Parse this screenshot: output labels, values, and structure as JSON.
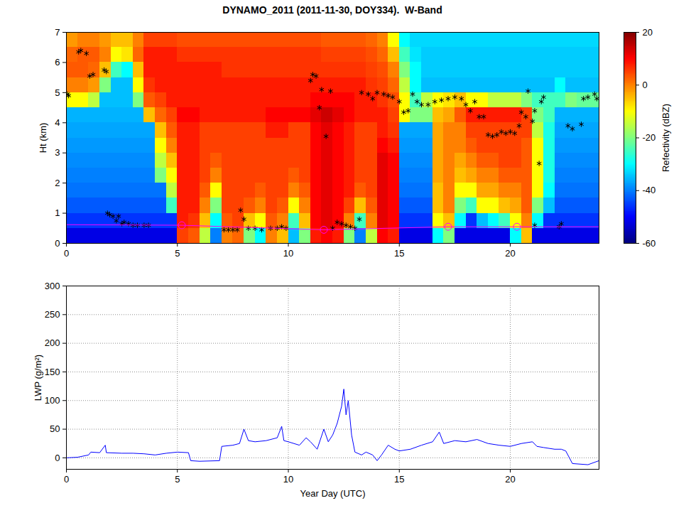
{
  "chart_data": [
    {
      "type": "heatmap",
      "title": "DYNAMO_2011 (2011-11-30, DOY334).  W-Band",
      "ylabel": "Ht (km)",
      "xlim": [
        0,
        24
      ],
      "xticks": [
        0,
        5,
        10,
        15,
        20
      ],
      "ylim": [
        0,
        7
      ],
      "yticks": [
        0,
        1,
        2,
        3,
        4,
        5,
        6,
        7
      ],
      "x_edges": [
        0,
        0.5,
        1,
        1.5,
        2,
        2.5,
        3,
        3.5,
        4,
        4.5,
        5,
        5.5,
        6,
        6.5,
        7,
        7.5,
        8,
        8.5,
        9,
        9.5,
        10,
        10.5,
        11,
        11.5,
        12,
        12.5,
        13,
        13.5,
        14,
        14.5,
        15,
        15.5,
        16,
        16.5,
        17,
        17.5,
        18,
        18.5,
        19,
        19.5,
        20,
        20.5,
        21,
        21.5,
        22,
        22.5,
        23,
        23.5,
        24
      ],
      "y_edges": [
        0,
        0.5,
        1,
        1.5,
        2,
        2.5,
        3,
        3.5,
        4,
        4.5,
        5,
        5.5,
        6,
        6.5,
        7
      ],
      "cells": [
        [
          -52,
          -46,
          -43,
          -41,
          -40,
          -39,
          -38,
          -37,
          -36,
          -10,
          0,
          3,
          2,
          -2
        ],
        [
          -52,
          -46,
          -43,
          -41,
          -40,
          -39,
          -38,
          -37,
          -36,
          -10,
          0,
          3,
          3,
          0
        ],
        [
          -52,
          -46,
          -43,
          -41,
          -40,
          -39,
          -38,
          -37,
          -36,
          -15,
          -2,
          2,
          3,
          0
        ],
        [
          -52,
          -46,
          -43,
          -41,
          -40,
          -39,
          -38,
          -37,
          -36,
          -35,
          -20,
          -5,
          0,
          -2
        ],
        [
          -52,
          -46,
          -43,
          -41,
          -40,
          -39,
          -38,
          -37,
          -36,
          -35,
          -35,
          -25,
          -10,
          -5
        ],
        [
          -52,
          -46,
          -43,
          -41,
          -40,
          -39,
          -38,
          -37,
          -36,
          -35,
          -35,
          -30,
          -8,
          -5
        ],
        [
          -52,
          -46,
          -43,
          -41,
          -40,
          -39,
          -38,
          -37,
          -36,
          -20,
          -10,
          -5,
          2,
          0
        ],
        [
          -52,
          -46,
          -43,
          -41,
          -40,
          -39,
          -38,
          -37,
          -5,
          3,
          6,
          8,
          8,
          5
        ],
        [
          -52,
          -46,
          -43,
          -41,
          -20,
          -15,
          -10,
          -5,
          2,
          5,
          8,
          8,
          8,
          5
        ],
        [
          -52,
          -46,
          -25,
          -15,
          -10,
          -5,
          0,
          3,
          5,
          8,
          8,
          8,
          8,
          5
        ],
        [
          5,
          8,
          8,
          8,
          8,
          8,
          8,
          8,
          10,
          8,
          8,
          8,
          6,
          4
        ],
        [
          3,
          6,
          8,
          8,
          8,
          8,
          8,
          8,
          10,
          8,
          8,
          8,
          6,
          4
        ],
        [
          -15,
          -5,
          0,
          3,
          5,
          5,
          5,
          5,
          8,
          8,
          8,
          8,
          6,
          4
        ],
        [
          -40,
          -30,
          -20,
          -10,
          0,
          3,
          5,
          5,
          8,
          8,
          8,
          8,
          6,
          4
        ],
        [
          0,
          3,
          5,
          5,
          5,
          5,
          5,
          5,
          8,
          8,
          8,
          6,
          6,
          4
        ],
        [
          2,
          5,
          5,
          5,
          5,
          5,
          5,
          5,
          8,
          8,
          8,
          6,
          6,
          4
        ],
        [
          -20,
          -5,
          3,
          5,
          5,
          5,
          5,
          5,
          8,
          8,
          8,
          6,
          6,
          4
        ],
        [
          -30,
          -10,
          0,
          3,
          5,
          5,
          5,
          5,
          8,
          8,
          8,
          6,
          6,
          4
        ],
        [
          0,
          3,
          5,
          5,
          5,
          5,
          5,
          8,
          10,
          8,
          8,
          6,
          6,
          4
        ],
        [
          -5,
          0,
          3,
          5,
          5,
          5,
          5,
          8,
          10,
          8,
          8,
          6,
          6,
          4
        ],
        [
          -35,
          -25,
          -10,
          0,
          3,
          5,
          5,
          5,
          10,
          8,
          8,
          6,
          6,
          4
        ],
        [
          -20,
          -5,
          0,
          3,
          5,
          5,
          5,
          5,
          10,
          8,
          8,
          6,
          6,
          4
        ],
        [
          8,
          10,
          10,
          10,
          10,
          10,
          10,
          10,
          12,
          10,
          8,
          6,
          6,
          4
        ],
        [
          10,
          12,
          12,
          12,
          12,
          12,
          12,
          12,
          14,
          10,
          8,
          6,
          5,
          3
        ],
        [
          8,
          10,
          10,
          10,
          10,
          10,
          10,
          10,
          12,
          10,
          8,
          6,
          5,
          3
        ],
        [
          -20,
          0,
          5,
          8,
          8,
          8,
          8,
          8,
          10,
          10,
          8,
          6,
          5,
          3
        ],
        [
          -40,
          -25,
          -5,
          3,
          5,
          5,
          5,
          5,
          8,
          8,
          8,
          6,
          5,
          3
        ],
        [
          -15,
          0,
          3,
          5,
          5,
          5,
          5,
          5,
          8,
          8,
          6,
          5,
          4,
          2
        ],
        [
          10,
          12,
          12,
          12,
          12,
          12,
          10,
          8,
          8,
          6,
          5,
          4,
          2,
          0
        ],
        [
          8,
          10,
          10,
          10,
          10,
          10,
          8,
          6,
          5,
          4,
          2,
          0,
          -5,
          -10
        ],
        [
          -52,
          -46,
          -43,
          -41,
          -40,
          -39,
          -38,
          -37,
          -10,
          -10,
          -15,
          -20,
          -25,
          -30
        ],
        [
          -52,
          -46,
          -43,
          -41,
          -40,
          -39,
          -38,
          -37,
          -20,
          -25,
          -30,
          -30,
          -32,
          -33
        ],
        [
          -52,
          -46,
          -43,
          -41,
          -40,
          -39,
          -38,
          -37,
          -20,
          -15,
          -35,
          -34,
          -34,
          -33
        ],
        [
          -30,
          -10,
          -5,
          -5,
          -3,
          -3,
          -3,
          -3,
          -5,
          -10,
          -35,
          -34,
          -34,
          -33
        ],
        [
          -20,
          -5,
          0,
          0,
          0,
          0,
          0,
          0,
          -3,
          -8,
          -35,
          -34,
          -34,
          -33
        ],
        [
          -52,
          -30,
          -20,
          -10,
          -5,
          -3,
          0,
          0,
          3,
          -5,
          -35,
          -34,
          -34,
          -33
        ],
        [
          -52,
          -46,
          -25,
          -10,
          -3,
          0,
          3,
          5,
          8,
          -10,
          -35,
          -34,
          -34,
          -33
        ],
        [
          -52,
          -35,
          -10,
          -3,
          0,
          3,
          5,
          5,
          8,
          -10,
          -35,
          -34,
          -34,
          -33
        ],
        [
          -52,
          -30,
          -10,
          -3,
          0,
          3,
          5,
          5,
          8,
          -15,
          -35,
          -34,
          -34,
          -33
        ],
        [
          -52,
          -25,
          -5,
          0,
          3,
          5,
          5,
          5,
          8,
          -15,
          -35,
          -34,
          -34,
          -33
        ],
        [
          -30,
          -10,
          -3,
          0,
          3,
          5,
          5,
          5,
          8,
          -15,
          -35,
          -34,
          -34,
          -33
        ],
        [
          -5,
          0,
          3,
          3,
          3,
          3,
          3,
          5,
          5,
          -20,
          -35,
          -34,
          -34,
          -33
        ],
        [
          -52,
          -30,
          -20,
          -10,
          -10,
          -10,
          -10,
          -15,
          -20,
          -25,
          -35,
          -34,
          -34,
          -33
        ],
        [
          -52,
          -46,
          -35,
          -30,
          -28,
          -28,
          -28,
          -28,
          -25,
          -25,
          -35,
          -34,
          -34,
          -33
        ],
        [
          -52,
          -46,
          -43,
          -41,
          -40,
          -39,
          -38,
          -37,
          -36,
          -25,
          -30,
          -34,
          -34,
          -33
        ],
        [
          -52,
          -46,
          -43,
          -41,
          -40,
          -39,
          -38,
          -37,
          -36,
          -20,
          -35,
          -34,
          -34,
          -33
        ],
        [
          -52,
          -46,
          -43,
          -41,
          -40,
          -39,
          -38,
          -37,
          -36,
          -22,
          -35,
          -34,
          -34,
          -33
        ],
        [
          -52,
          -46,
          -43,
          -41,
          -40,
          -39,
          -38,
          -37,
          -36,
          -22,
          -35,
          -34,
          -34,
          -33
        ]
      ],
      "colorbar": {
        "label": "Refectivity (dBZ)",
        "range": [
          -60,
          20
        ],
        "ticks": [
          -60,
          -40,
          -20,
          0,
          20
        ]
      },
      "series": [
        {
          "type": "scatter",
          "marker": "asterisk",
          "color": "#000000",
          "x": [
            0.05,
            0.1,
            0.55,
            0.65,
            0.9,
            1.05,
            1.2,
            1.7,
            1.8,
            1.85,
            1.95,
            2.1,
            2.25,
            2.35,
            2.5,
            2.6,
            2.8,
            3.0,
            3.2,
            3.5,
            3.7,
            7.1,
            7.3,
            7.5,
            7.7,
            7.85,
            8.0,
            8.2,
            8.5,
            8.8,
            9.2,
            9.5,
            9.7,
            9.9,
            11.0,
            11.1,
            11.25,
            11.4,
            11.5,
            11.7,
            11.9,
            12.0,
            12.2,
            12.4,
            12.6,
            12.8,
            13.0,
            13.2,
            13.3,
            13.6,
            13.8,
            14.0,
            14.3,
            14.5,
            14.7,
            15.0,
            15.2,
            15.4,
            15.6,
            15.8,
            16.0,
            16.3,
            16.6,
            16.9,
            17.2,
            17.5,
            17.8,
            18.0,
            18.2,
            18.4,
            18.6,
            18.8,
            19.0,
            19.2,
            19.4,
            19.6,
            19.8,
            20.0,
            20.2,
            20.4,
            20.5,
            20.7,
            20.8,
            21.0,
            21.1,
            21.3,
            21.4,
            21.5,
            21.1,
            22.2,
            22.3,
            22.6,
            22.8,
            23.2,
            23.3,
            23.5,
            23.8,
            23.9
          ],
          "y": [
            4.95,
            4.9,
            6.35,
            6.4,
            6.3,
            5.55,
            5.6,
            5.75,
            5.7,
            1.0,
            0.95,
            0.9,
            0.75,
            0.9,
            0.65,
            0.7,
            0.65,
            0.6,
            0.6,
            0.6,
            0.6,
            0.45,
            0.45,
            0.45,
            0.45,
            1.1,
            0.8,
            0.5,
            0.5,
            0.45,
            0.5,
            0.5,
            0.55,
            0.5,
            5.4,
            5.6,
            5.55,
            4.5,
            5.1,
            3.55,
            5.05,
            0.5,
            0.7,
            0.65,
            0.6,
            0.55,
            0.5,
            0.8,
            5.0,
            4.95,
            4.8,
            5.0,
            4.95,
            4.9,
            4.85,
            4.7,
            4.35,
            4.4,
            4.95,
            4.7,
            4.6,
            4.6,
            4.7,
            4.75,
            4.8,
            4.85,
            4.8,
            4.6,
            4.4,
            4.7,
            4.2,
            4.2,
            3.6,
            3.55,
            3.6,
            3.7,
            3.65,
            3.7,
            3.65,
            3.9,
            4.35,
            4.2,
            5.05,
            4.05,
            4.4,
            2.65,
            4.7,
            4.85,
            0.6,
            0.55,
            0.65,
            3.9,
            3.8,
            3.95,
            4.8,
            4.85,
            4.95,
            4.8
          ]
        },
        {
          "type": "line",
          "line_style": "solid",
          "color": "#ff00ff",
          "x": [
            0,
            5.2,
            11.6,
            17.2,
            20.3,
            24
          ],
          "y": [
            0.62,
            0.6,
            0.45,
            0.55,
            0.55,
            0.55
          ]
        },
        {
          "type": "scatter",
          "marker": "circle",
          "color": "#ff00ff",
          "x": [
            5.2,
            11.6,
            17.2,
            20.3
          ],
          "y": [
            0.6,
            0.45,
            0.55,
            0.55
          ]
        }
      ]
    },
    {
      "type": "line",
      "xlabel": "Year Day (UTC)",
      "ylabel": "LWP (g/m²)",
      "xlim": [
        0,
        24
      ],
      "xticks": [
        0,
        5,
        10,
        15,
        20
      ],
      "ylim": [
        -20,
        300
      ],
      "yticks": [
        0,
        50,
        100,
        150,
        200,
        250,
        300
      ],
      "grid": true,
      "series": [
        {
          "color": "#0000ff",
          "line_style": "solid",
          "x": [
            0,
            0.5,
            1.0,
            1.1,
            1.5,
            1.75,
            1.8,
            2.5,
            3,
            3.5,
            4,
            4.5,
            5,
            5.5,
            5.6,
            6,
            6.9,
            7.0,
            7.5,
            7.8,
            8.0,
            8.2,
            8.5,
            9,
            9.5,
            9.7,
            9.8,
            10,
            10.5,
            10.8,
            11,
            11.3,
            11.6,
            11.8,
            12,
            12.2,
            12.4,
            12.5,
            12.6,
            12.7,
            12.85,
            13,
            13.3,
            13.5,
            13.8,
            14,
            14.2,
            14.5,
            14.8,
            15,
            15.5,
            16,
            16.5,
            16.8,
            17,
            17.5,
            18,
            18.5,
            19,
            19.5,
            20,
            20.5,
            21,
            21.2,
            21.5,
            22,
            22.3,
            22.5,
            22.8,
            23.5,
            24
          ],
          "values": [
            0,
            1,
            5,
            10,
            9,
            22,
            9,
            8,
            8,
            7,
            5,
            8,
            10,
            9,
            -5,
            -6,
            -5,
            20,
            22,
            25,
            50,
            30,
            28,
            30,
            35,
            55,
            30,
            28,
            22,
            35,
            28,
            15,
            50,
            28,
            40,
            60,
            90,
            120,
            75,
            100,
            40,
            10,
            5,
            10,
            5,
            -5,
            5,
            22,
            15,
            12,
            15,
            22,
            28,
            45,
            25,
            30,
            28,
            32,
            25,
            22,
            20,
            25,
            28,
            20,
            18,
            15,
            15,
            12,
            -10,
            -12,
            -5
          ]
        }
      ]
    }
  ]
}
